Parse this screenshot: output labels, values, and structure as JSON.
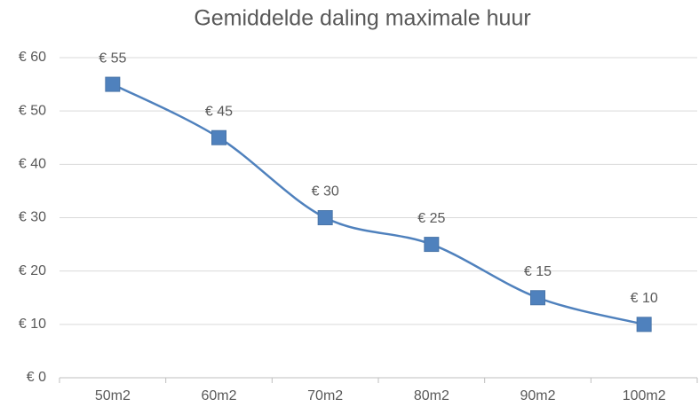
{
  "chart_data": {
    "type": "line",
    "title": "Gemiddelde daling maximale huur",
    "categories": [
      "50m2",
      "60m2",
      "70m2",
      "80m2",
      "90m2",
      "100m2"
    ],
    "series": [
      {
        "name": "Daling",
        "color": "#4f81bd",
        "values": [
          55,
          45,
          30,
          25,
          15,
          10
        ],
        "value_labels": [
          "€ 55",
          "€ 45",
          "€ 30",
          "€ 25",
          "€ 15",
          "€ 10"
        ]
      }
    ],
    "ylim": [
      0,
      60
    ],
    "yticks": [
      {
        "value": 0,
        "label": "€ 0"
      },
      {
        "value": 10,
        "label": "€ 10"
      },
      {
        "value": 20,
        "label": "€ 20"
      },
      {
        "value": 30,
        "label": "€ 30"
      },
      {
        "value": 40,
        "label": "€ 40"
      },
      {
        "value": 50,
        "label": "€ 50"
      },
      {
        "value": 60,
        "label": "€ 60"
      }
    ],
    "grid": true,
    "smooth": true
  }
}
